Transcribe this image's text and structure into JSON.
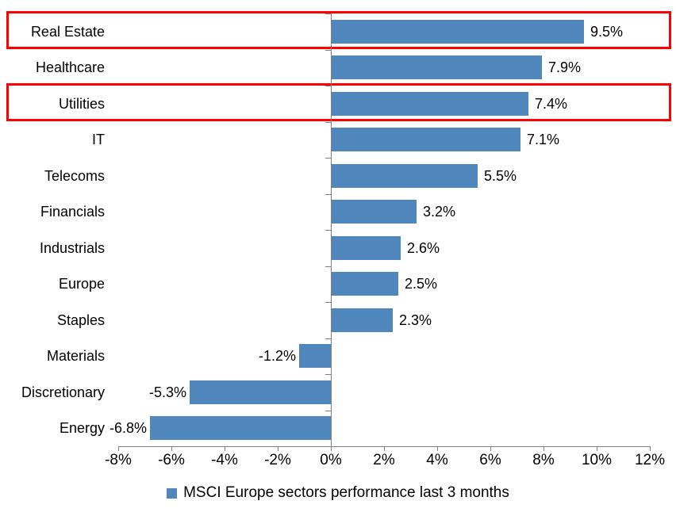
{
  "chart_data": {
    "type": "bar",
    "orientation": "horizontal",
    "categories": [
      "Real Estate",
      "Healthcare",
      "Utilities",
      "IT",
      "Telecoms",
      "Financials",
      "Industrials",
      "Europe",
      "Staples",
      "Materials",
      "Discretionary",
      "Energy"
    ],
    "values": [
      9.5,
      7.9,
      7.4,
      7.1,
      5.5,
      3.2,
      2.6,
      2.5,
      2.3,
      -1.2,
      -5.3,
      -6.8
    ],
    "value_labels": [
      "9.5%",
      "7.9%",
      "7.4%",
      "7.1%",
      "5.5%",
      "3.2%",
      "2.6%",
      "2.5%",
      "2.3%",
      "-1.2%",
      "-5.3%",
      "-6.8%"
    ],
    "x_axis": {
      "min": -8,
      "max": 12,
      "step": 2,
      "tick_labels": [
        "-8%",
        "-6%",
        "-4%",
        "-2%",
        "0%",
        "2%",
        "4%",
        "6%",
        "8%",
        "10%",
        "12%"
      ]
    },
    "legend": {
      "label": "MSCI Europe sectors performance last 3 months",
      "position": "bottom"
    },
    "highlighted_categories": [
      "Real Estate",
      "Utilities"
    ],
    "highlight_row_indices": [
      0,
      2
    ],
    "grid": false,
    "colors": {
      "bar": "#4f86bc",
      "highlight_border": "#ff0000",
      "axis": "#808080",
      "text": "#000000",
      "background": "#ffffff"
    }
  }
}
